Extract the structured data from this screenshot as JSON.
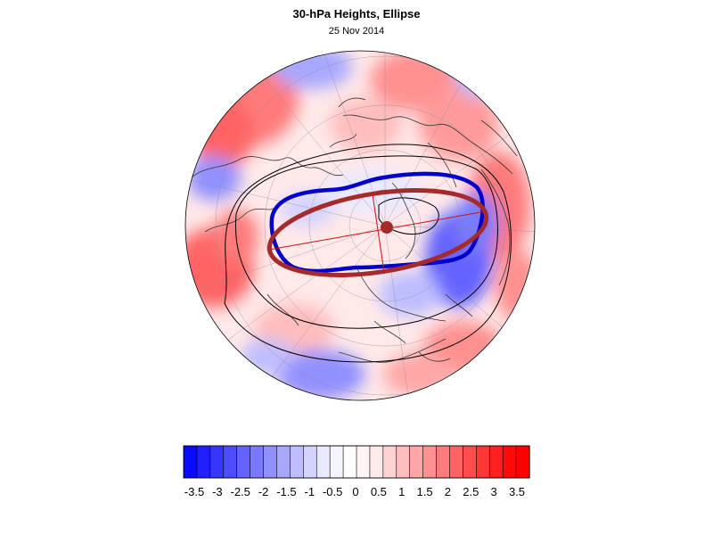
{
  "header": {
    "title": "30-hPa Heights, Ellipse",
    "date": "25 Nov 2014"
  },
  "map": {
    "projection": "north-polar-stereographic",
    "anomaly_field": "30-hPa height anomaly (shaded)",
    "colors": {
      "ellipse": "#a52a2a",
      "vortex_edge": "#0000cd",
      "contours": "#000000",
      "coastlines": "#333333",
      "grid": "#8a8aa0"
    }
  },
  "colorbar": {
    "labels": [
      "-3.5",
      "-3",
      "-2.5",
      "-2",
      "-1.5",
      "-1",
      "-0.5",
      "0",
      "0.5",
      "1",
      "1.5",
      "2",
      "2.5",
      "3",
      "3.5"
    ],
    "colors": [
      "#0a0aff",
      "#2020ff",
      "#3636ff",
      "#4d4dff",
      "#6363ff",
      "#7a7aff",
      "#9090ff",
      "#a7a7ff",
      "#bdbdff",
      "#d3d3ff",
      "#e9e9ff",
      "#f4f4ff",
      "#ffffff",
      "#fff4f4",
      "#ffe9e9",
      "#ffd3d3",
      "#ffbdbd",
      "#ffa7a7",
      "#ff9090",
      "#ff7a7a",
      "#ff6363",
      "#ff4d4d",
      "#ff3636",
      "#ff2020",
      "#ff0a0a",
      "#ff0000"
    ]
  }
}
